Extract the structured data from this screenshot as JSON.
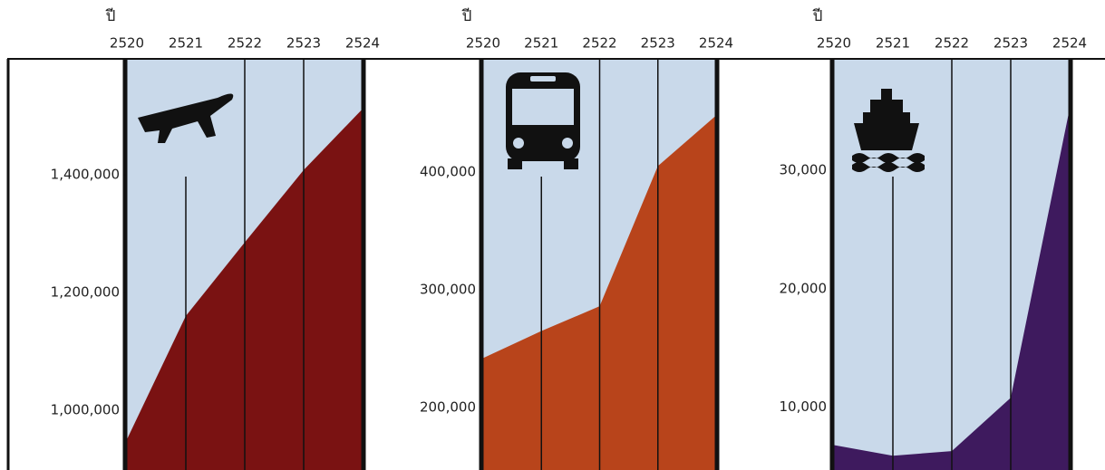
{
  "chart_data": [
    {
      "type": "area",
      "xlabel": "ปี",
      "categories": [
        "2520",
        "2521",
        "2522",
        "2523",
        "2524"
      ],
      "values": [
        950000,
        1160000,
        1285000,
        1408000,
        1512000
      ],
      "color": "#7a1212",
      "ylim": [
        898000,
        1597000
      ],
      "yticks": [
        {
          "value": 1000000,
          "label": "1,000,000"
        },
        {
          "value": 1200000,
          "label": "1,200,000"
        },
        {
          "value": 1400000,
          "label": "1,400,000"
        }
      ]
    },
    {
      "type": "area",
      "xlabel": "ปี",
      "categories": [
        "2520",
        "2521",
        "2522",
        "2523",
        "2524"
      ],
      "values": [
        242000,
        265000,
        286000,
        405000,
        448000
      ],
      "color": "#b8441b",
      "ylim": [
        147000,
        496000
      ],
      "yticks": [
        {
          "value": 200000,
          "label": "200,000"
        },
        {
          "value": 300000,
          "label": "300,000"
        },
        {
          "value": 400000,
          "label": "400,000"
        }
      ]
    },
    {
      "type": "area",
      "xlabel": "ปี",
      "categories": [
        "2520",
        "2521",
        "2522",
        "2523",
        "2524"
      ],
      "values": [
        6800,
        5900,
        6300,
        10800,
        35200
      ],
      "color": "#3e1a5e",
      "ylim": [
        4700,
        39400
      ],
      "yticks": [
        {
          "value": 10000,
          "label": "10,000"
        },
        {
          "value": 20000,
          "label": "20,000"
        },
        {
          "value": 30000,
          "label": "30,000"
        }
      ]
    }
  ]
}
